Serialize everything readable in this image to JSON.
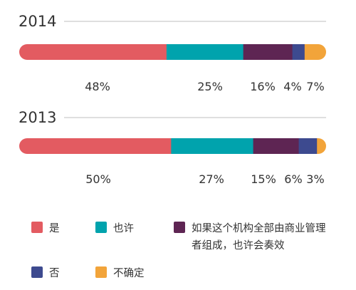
{
  "chart_data": {
    "type": "bar",
    "stacked": true,
    "orientation": "horizontal",
    "categories": [
      "2014",
      "2013"
    ],
    "series": [
      {
        "name": "是",
        "values": [
          48,
          50
        ],
        "color": "#e35b61"
      },
      {
        "name": "也许",
        "values": [
          25,
          27
        ],
        "color": "#00a3ad"
      },
      {
        "name": "如果这个机构全部由商业管理者组成，也许会奏效",
        "values": [
          16,
          15
        ],
        "color": "#5e2553"
      },
      {
        "name": "否",
        "values": [
          4,
          6
        ],
        "color": "#3d4a8f"
      },
      {
        "name": "不确定",
        "values": [
          7,
          3
        ],
        "color": "#f2a43a"
      }
    ],
    "data_labels": [
      [
        "48%",
        "25%",
        "16%",
        "4%",
        "7%"
      ],
      [
        "50%",
        "27%",
        "15%",
        "6%",
        "3%"
      ]
    ],
    "legend_position": "bottom",
    "grid": false
  }
}
